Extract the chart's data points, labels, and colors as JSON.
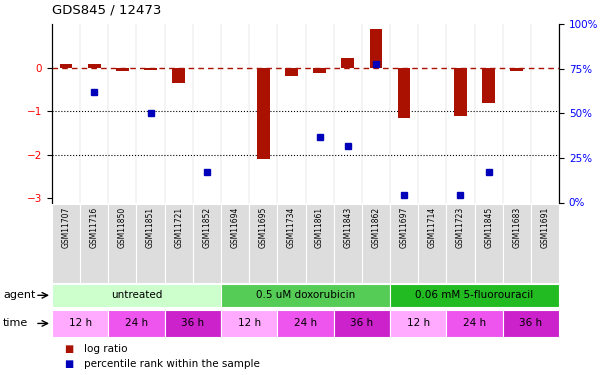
{
  "title": "GDS845 / 12473",
  "samples": [
    "GSM11707",
    "GSM11716",
    "GSM11850",
    "GSM11851",
    "GSM11721",
    "GSM11852",
    "GSM11694",
    "GSM11695",
    "GSM11734",
    "GSM11861",
    "GSM11843",
    "GSM11862",
    "GSM11697",
    "GSM11714",
    "GSM11723",
    "GSM11845",
    "GSM11683",
    "GSM11691"
  ],
  "log_ratio": [
    0.08,
    0.08,
    -0.08,
    -0.05,
    -0.35,
    0.0,
    0.0,
    -2.1,
    -0.18,
    -0.12,
    0.22,
    0.9,
    -1.15,
    0.0,
    -1.1,
    -0.8,
    -0.07,
    0.0
  ],
  "percentile_rank": [
    null,
    62,
    null,
    50,
    null,
    17,
    null,
    null,
    null,
    37,
    32,
    78,
    4,
    null,
    4,
    17,
    null,
    null
  ],
  "agents": [
    {
      "label": "untreated",
      "start": 0,
      "end": 6,
      "color": "#ccffcc"
    },
    {
      "label": "0.5 uM doxorubicin",
      "start": 6,
      "end": 12,
      "color": "#55cc55"
    },
    {
      "label": "0.06 mM 5-fluorouracil",
      "start": 12,
      "end": 18,
      "color": "#22bb22"
    }
  ],
  "time_spans": [
    {
      "label": "12 h",
      "start": 0,
      "end": 2,
      "color": "#ffaaff"
    },
    {
      "label": "24 h",
      "start": 2,
      "end": 4,
      "color": "#ee55ee"
    },
    {
      "label": "36 h",
      "start": 4,
      "end": 6,
      "color": "#cc22cc"
    },
    {
      "label": "12 h",
      "start": 6,
      "end": 8,
      "color": "#ffaaff"
    },
    {
      "label": "24 h",
      "start": 8,
      "end": 10,
      "color": "#ee55ee"
    },
    {
      "label": "36 h",
      "start": 10,
      "end": 12,
      "color": "#cc22cc"
    },
    {
      "label": "12 h",
      "start": 12,
      "end": 14,
      "color": "#ffaaff"
    },
    {
      "label": "24 h",
      "start": 14,
      "end": 16,
      "color": "#ee55ee"
    },
    {
      "label": "36 h",
      "start": 16,
      "end": 18,
      "color": "#cc22cc"
    }
  ],
  "bar_color": "#aa1100",
  "dot_color": "#0000bb",
  "ylim_left": [
    -3.1,
    1.0
  ],
  "ylim_right": [
    0,
    100
  ],
  "yticks_left": [
    -3,
    -2,
    -1,
    0
  ],
  "yticks_right": [
    0,
    25,
    50,
    75,
    100
  ],
  "dotted_lines": [
    -1,
    -2
  ],
  "background_color": "#ffffff"
}
